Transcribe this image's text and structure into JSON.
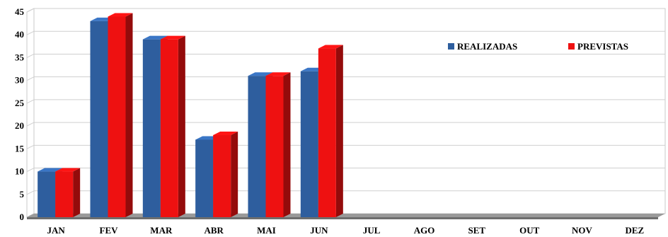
{
  "chart_data": {
    "type": "bar",
    "title": "",
    "xlabel": "",
    "ylabel": "",
    "categories": [
      "JAN",
      "FEV",
      "MAR",
      "ABR",
      "MAI",
      "JUN",
      "JUL",
      "AGO",
      "SET",
      "OUT",
      "NOV",
      "DEZ"
    ],
    "series": [
      {
        "name": "REALIZADAS",
        "color": "#2e5e9e",
        "values": [
          10,
          43,
          39,
          17,
          31,
          32,
          0,
          0,
          0,
          0,
          0,
          0
        ]
      },
      {
        "name": "PREVISTAS",
        "color": "#ee1111",
        "values": [
          10,
          44,
          39,
          18,
          31,
          37,
          0,
          0,
          0,
          0,
          0,
          0
        ]
      }
    ],
    "ylim": [
      0,
      45
    ],
    "yticks": [
      0,
      5,
      10,
      15,
      20,
      25,
      30,
      35,
      40,
      45
    ],
    "grid": true,
    "legend_position": "top-right",
    "style": "3d-bar"
  }
}
